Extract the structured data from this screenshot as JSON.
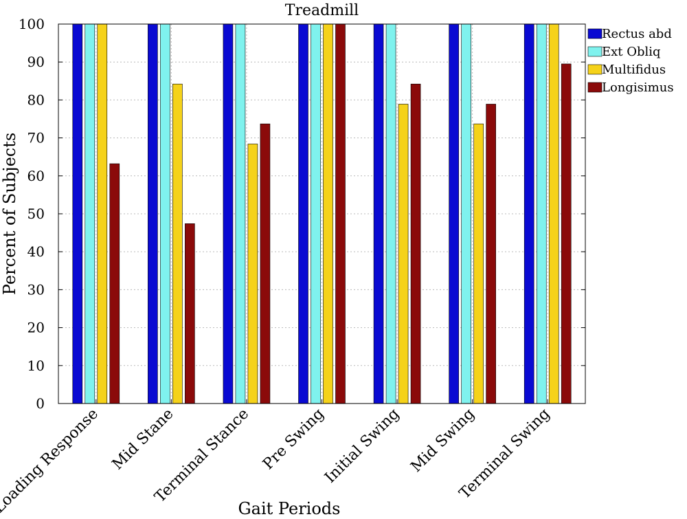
{
  "chart_data": {
    "type": "bar",
    "title": "Treadmill",
    "xlabel": "Gait Periods",
    "ylabel": "Percent of Subjects",
    "ylim": [
      0,
      100
    ],
    "yticks": [
      0,
      10,
      20,
      30,
      40,
      50,
      60,
      70,
      80,
      90,
      100
    ],
    "grid": true,
    "legend_position": "top-right-outside",
    "categories": [
      "Loading Response",
      "Mid Stane",
      "Terminal Stance",
      "Pre Swing",
      "Initial Swing",
      "Mid Swing",
      "Terminal Swing"
    ],
    "series": [
      {
        "name": "Rectus abd",
        "color": "#0a0ad2",
        "values": [
          100,
          100,
          100,
          100,
          100,
          100,
          100
        ]
      },
      {
        "name": "Ext Obliq",
        "color": "#7ff2ee",
        "values": [
          100,
          100,
          100,
          100,
          100,
          100,
          100
        ]
      },
      {
        "name": "Multifidus",
        "color": "#f5d21a",
        "values": [
          100,
          84.2,
          68.4,
          100,
          78.9,
          73.7,
          100
        ]
      },
      {
        "name": "Longisimus",
        "color": "#8b0a0a",
        "values": [
          63.2,
          47.4,
          73.7,
          100,
          84.2,
          78.9,
          89.5
        ]
      }
    ]
  }
}
